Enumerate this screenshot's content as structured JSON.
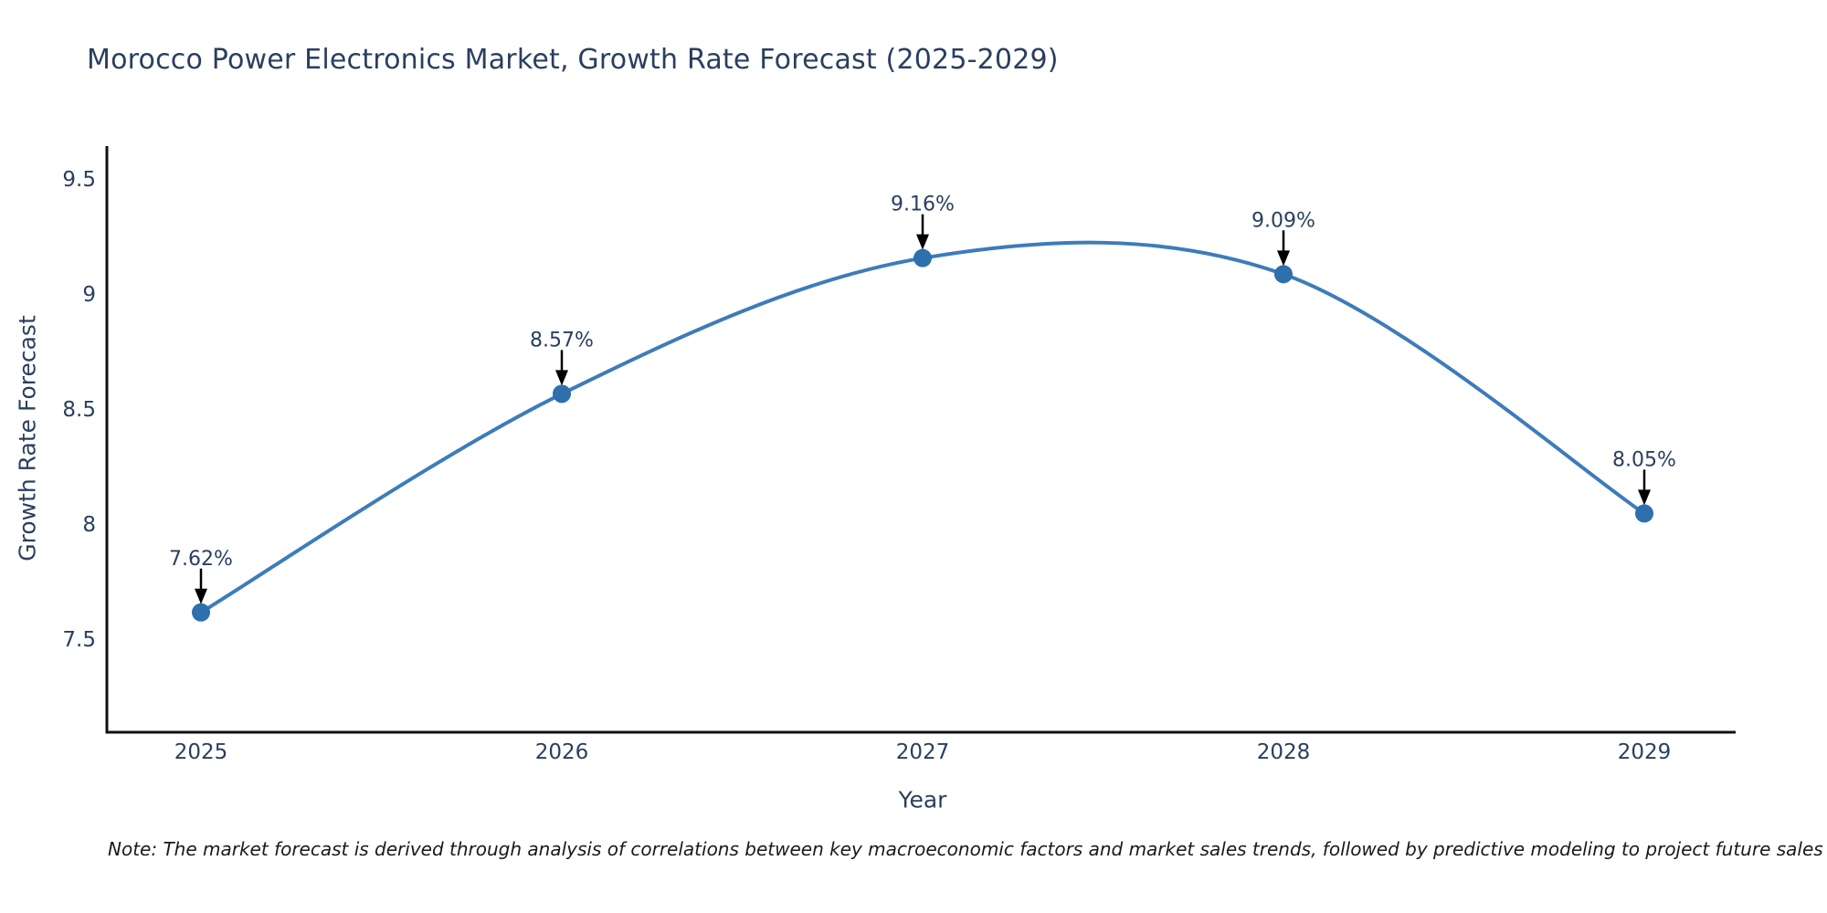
{
  "page": {
    "background": "#ffffff"
  },
  "chart_data": {
    "type": "line",
    "line_shape": "spline",
    "title": "Morocco Power Electronics Market, Growth Rate Forecast (2025-2029)",
    "xlabel": "Year",
    "ylabel": "Growth Rate Forecast",
    "categories": [
      "2025",
      "2026",
      "2027",
      "2028",
      "2029"
    ],
    "series": [
      {
        "name": "Growth Rate Forecast",
        "values": [
          7.62,
          8.57,
          9.16,
          9.09,
          8.05
        ]
      }
    ],
    "point_labels": [
      "7.62%",
      "8.57%",
      "9.16%",
      "9.09%",
      "8.05%"
    ],
    "yticks": [
      "7.5",
      "8",
      "8.5",
      "9",
      "9.5"
    ],
    "ylim": [
      7.1,
      9.64
    ],
    "grid": false,
    "legend_position": "none",
    "annotation_style": "down-arrow-to-point",
    "colors": {
      "line": "#3d7cba",
      "marker": "#2e6fad",
      "arrow": "#000000",
      "axis": "#111111",
      "text": "#2a3f5f",
      "note": "#1a1a1a"
    },
    "note": "Note: The market forecast is derived through analysis of correlations between key macroeconomic factors and market sales trends, followed by predictive modeling to project future sales"
  }
}
